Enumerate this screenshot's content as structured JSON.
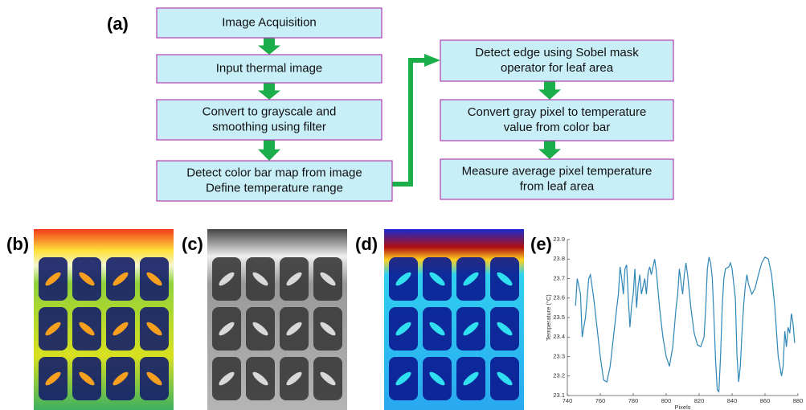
{
  "flowchart": {
    "label": "(a)",
    "nodes": [
      {
        "lines": [
          "Image Acquisition"
        ]
      },
      {
        "lines": [
          "Input thermal image"
        ]
      },
      {
        "lines": [
          "Convert to grayscale and",
          "smoothing using filter"
        ]
      },
      {
        "lines": [
          "Detect color bar map from image",
          "Define temperature range"
        ]
      },
      {
        "lines": [
          "Detect edge using Sobel mask",
          "operator for leaf area"
        ]
      },
      {
        "lines": [
          "Convert gray pixel to temperature",
          "value from color bar"
        ]
      },
      {
        "lines": [
          "Measure average pixel temperature",
          "from leaf area"
        ]
      }
    ]
  },
  "panels": {
    "b": "(b)",
    "c": "(c)",
    "d": "(d)",
    "e": "(e)"
  },
  "chart_data": {
    "type": "line",
    "x": [
      745,
      746,
      748,
      749,
      751,
      753,
      754,
      756,
      758,
      760,
      762,
      764,
      766,
      768,
      770,
      771,
      772,
      773,
      774,
      775,
      776,
      777,
      778,
      779,
      780,
      781,
      782,
      783,
      784,
      785,
      787,
      788,
      789,
      790,
      791,
      792,
      793,
      794,
      796,
      798,
      800,
      802,
      804,
      806,
      807,
      808,
      809,
      810,
      811,
      812,
      813,
      815,
      817,
      819,
      821,
      823,
      824,
      825,
      826,
      827,
      828,
      829,
      830,
      831,
      832,
      833,
      834,
      835,
      836,
      838,
      839,
      840,
      842,
      843,
      844,
      845,
      846,
      847,
      848,
      849,
      850,
      852,
      854,
      856,
      858,
      860,
      862,
      864,
      866,
      868,
      870,
      871,
      872,
      873,
      874,
      875,
      876,
      877,
      878
    ],
    "series": [
      {
        "color": "#2e86b8",
        "values": [
          23.56,
          23.7,
          23.62,
          23.4,
          23.5,
          23.7,
          23.72,
          23.6,
          23.45,
          23.3,
          23.18,
          23.17,
          23.25,
          23.4,
          23.55,
          23.62,
          23.76,
          23.7,
          23.62,
          23.75,
          23.77,
          23.6,
          23.45,
          23.56,
          23.62,
          23.75,
          23.55,
          23.66,
          23.72,
          23.62,
          23.7,
          23.62,
          23.73,
          23.76,
          23.72,
          23.76,
          23.8,
          23.74,
          23.55,
          23.4,
          23.3,
          23.25,
          23.35,
          23.55,
          23.62,
          23.75,
          23.68,
          23.62,
          23.72,
          23.78,
          23.72,
          23.55,
          23.42,
          23.36,
          23.35,
          23.4,
          23.55,
          23.75,
          23.81,
          23.78,
          23.7,
          23.5,
          23.28,
          23.13,
          23.12,
          23.3,
          23.55,
          23.7,
          23.75,
          23.76,
          23.78,
          23.75,
          23.6,
          23.3,
          23.17,
          23.25,
          23.42,
          23.56,
          23.66,
          23.72,
          23.67,
          23.62,
          23.65,
          23.72,
          23.78,
          23.81,
          23.8,
          23.72,
          23.55,
          23.3,
          23.2,
          23.25,
          23.43,
          23.35,
          23.45,
          23.42,
          23.52,
          23.47,
          23.37
        ]
      }
    ],
    "xlim": [
      740,
      880
    ],
    "ylim": [
      23.1,
      23.9
    ],
    "xticks": [
      740,
      760,
      780,
      800,
      820,
      840,
      860,
      880
    ],
    "yticks": [
      23.1,
      23.2,
      23.3,
      23.4,
      23.5,
      23.6,
      23.7,
      23.8,
      23.9
    ],
    "xlabel": "Pixels",
    "ylabel": "Temperature (°C)"
  }
}
